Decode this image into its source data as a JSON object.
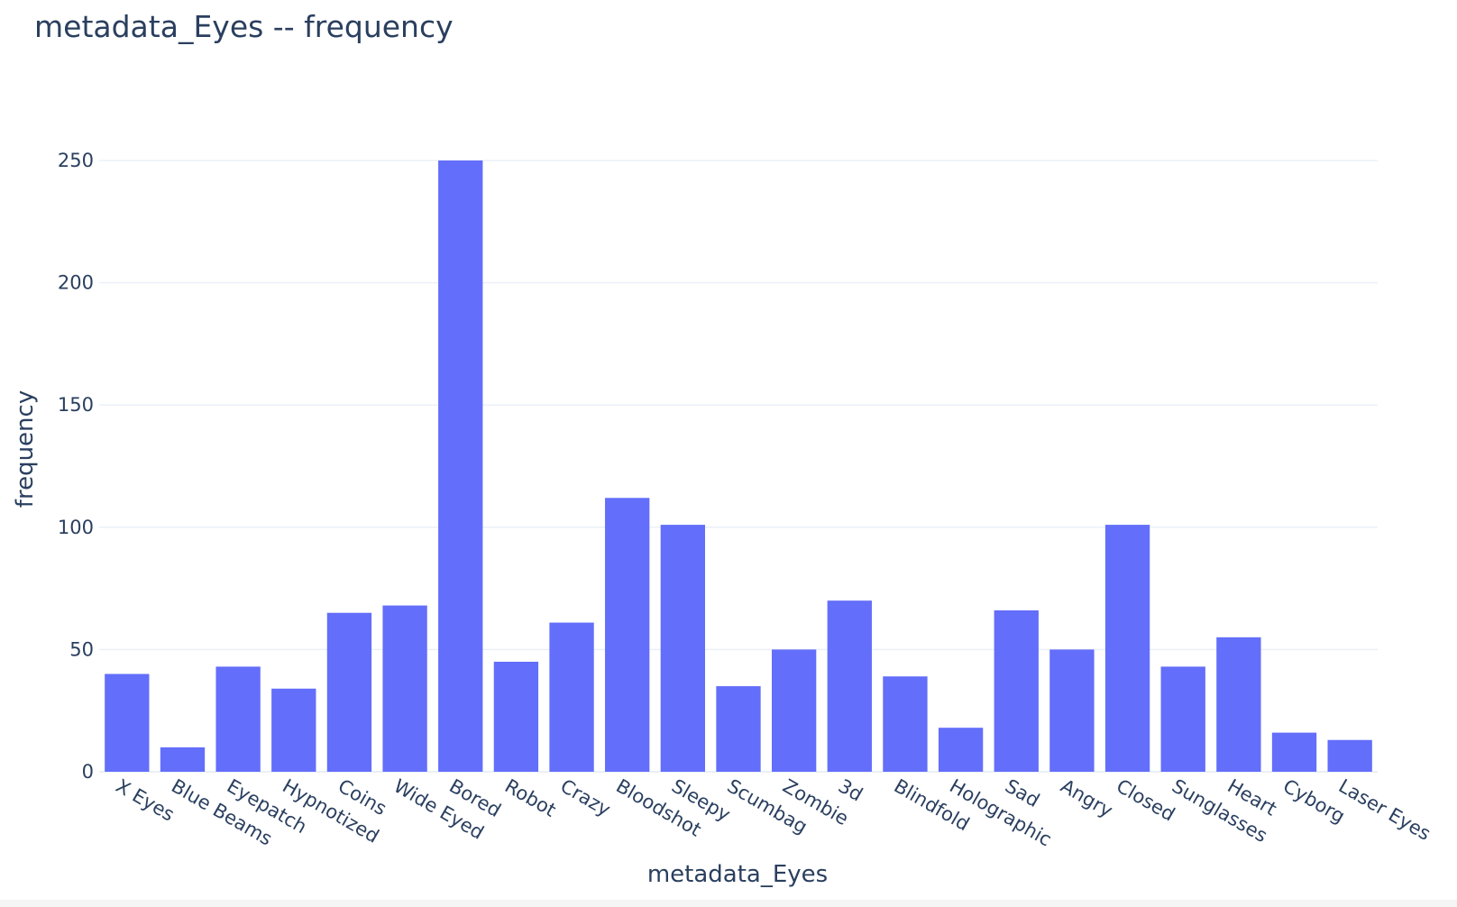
{
  "colors": {
    "bar": "#636efa",
    "text": "#2a3f5f",
    "grid": "#ebf0f8"
  },
  "chart_data": {
    "type": "bar",
    "title": "metadata_Eyes -- frequency",
    "xlabel": "metadata_Eyes",
    "ylabel": "frequency",
    "ylim": [
      0,
      250
    ],
    "yticks": [
      0,
      50,
      100,
      150,
      200,
      250
    ],
    "ytick_labels": [
      "0",
      "50",
      "100",
      "150",
      "200",
      "250"
    ],
    "grid": true,
    "categories": [
      "X Eyes",
      "Blue Beams",
      "Eyepatch",
      "Hypnotized",
      "Coins",
      "Wide Eyed",
      "Bored",
      "Robot",
      "Crazy",
      "Bloodshot",
      "Sleepy",
      "Scumbag",
      "Zombie",
      "3d",
      "Blindfold",
      "Holographic",
      "Sad",
      "Angry",
      "Closed",
      "Sunglasses",
      "Heart",
      "Cyborg",
      "Laser Eyes"
    ],
    "values": [
      40,
      10,
      43,
      34,
      65,
      68,
      250,
      45,
      61,
      112,
      101,
      35,
      50,
      70,
      39,
      18,
      66,
      50,
      101,
      43,
      55,
      16,
      13
    ]
  }
}
